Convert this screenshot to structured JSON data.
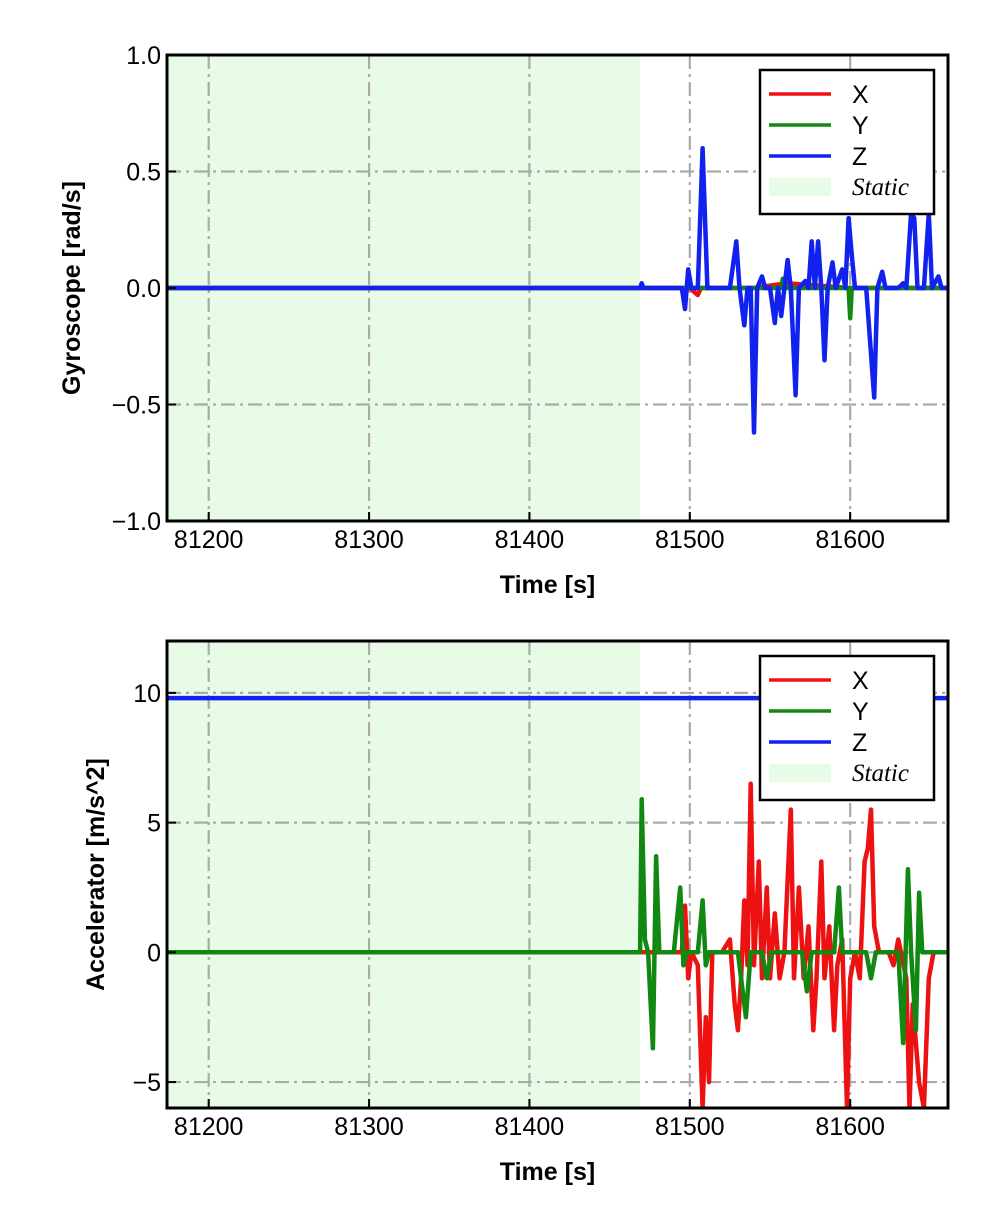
{
  "chart_data": [
    {
      "type": "line",
      "xlabel": "Time [s]",
      "ylabel": "Gyroscope [rad/s]",
      "xlim": [
        81174,
        81661
      ],
      "ylim": [
        -1.0,
        1.0
      ],
      "x_ticks": [
        81200,
        81300,
        81400,
        81500,
        81600
      ],
      "x_tick_labels": [
        "81200",
        "81300",
        "81400",
        "81500",
        "81600"
      ],
      "y_ticks": [
        -1.0,
        -0.5,
        0.0,
        0.5,
        1.0
      ],
      "y_tick_labels": [
        "−1.0",
        "−0.5",
        "0.0",
        "0.5",
        "1.0"
      ],
      "grid": true,
      "legend_position": "top-right",
      "static_region": {
        "label": "Static",
        "x": [
          81174,
          81469
        ],
        "color": "#e8fbe6"
      },
      "series": [
        {
          "name": "X",
          "color": "#ee1111",
          "points": [
            [
              81174,
              0
            ],
            [
              81469,
              0
            ],
            [
              81500,
              0
            ],
            [
              81505,
              -0.03
            ],
            [
              81507,
              0
            ],
            [
              81540,
              0
            ],
            [
              81560,
              0.02
            ],
            [
              81600,
              0
            ],
            [
              81661,
              0
            ]
          ]
        },
        {
          "name": "Y",
          "color": "#118811",
          "points": [
            [
              81174,
              0
            ],
            [
              81469,
              0
            ],
            [
              81540,
              0
            ],
            [
              81557,
              0
            ],
            [
              81558,
              0.04
            ],
            [
              81559,
              0
            ],
            [
              81599,
              0
            ],
            [
              81600,
              -0.13
            ],
            [
              81601,
              0
            ],
            [
              81661,
              0
            ]
          ]
        },
        {
          "name": "Z",
          "color": "#1122ee",
          "points": [
            [
              81174,
              0
            ],
            [
              81469,
              0
            ],
            [
              81470,
              0.02
            ],
            [
              81471,
              0
            ],
            [
              81495,
              0
            ],
            [
              81497,
              -0.09
            ],
            [
              81499,
              0.08
            ],
            [
              81501,
              0
            ],
            [
              81505,
              0
            ],
            [
              81508,
              0.6
            ],
            [
              81511,
              0
            ],
            [
              81525,
              0
            ],
            [
              81529,
              0.2
            ],
            [
              81531,
              0
            ],
            [
              81534,
              -0.16
            ],
            [
              81536,
              0
            ],
            [
              81538,
              0
            ],
            [
              81540,
              -0.62
            ],
            [
              81542,
              0
            ],
            [
              81545,
              0.05
            ],
            [
              81547,
              0
            ],
            [
              81550,
              0
            ],
            [
              81553,
              -0.15
            ],
            [
              81555,
              0
            ],
            [
              81557,
              -0.12
            ],
            [
              81559,
              0
            ],
            [
              81561,
              0.12
            ],
            [
              81563,
              0
            ],
            [
              81566,
              -0.46
            ],
            [
              81568,
              0
            ],
            [
              81572,
              0.03
            ],
            [
              81574,
              0
            ],
            [
              81576,
              0.2
            ],
            [
              81578,
              0
            ],
            [
              81580,
              0.2
            ],
            [
              81582,
              0
            ],
            [
              81584,
              -0.31
            ],
            [
              81586,
              0
            ],
            [
              81589,
              0.11
            ],
            [
              81591,
              0
            ],
            [
              81595,
              0.08
            ],
            [
              81597,
              0
            ],
            [
              81599,
              0.3
            ],
            [
              81601,
              0.14
            ],
            [
              81603,
              0
            ],
            [
              81610,
              0
            ],
            [
              81615,
              -0.47
            ],
            [
              81617,
              0
            ],
            [
              81620,
              0.07
            ],
            [
              81622,
              0
            ],
            [
              81630,
              0
            ],
            [
              81633,
              0.02
            ],
            [
              81635,
              0
            ],
            [
              81638,
              0.32
            ],
            [
              81640,
              0.3
            ],
            [
              81642,
              0
            ],
            [
              81646,
              0
            ],
            [
              81649,
              0.32
            ],
            [
              81651,
              0
            ],
            [
              81655,
              0.05
            ],
            [
              81657,
              0
            ],
            [
              81661,
              0
            ]
          ]
        }
      ]
    },
    {
      "type": "line",
      "xlabel": "Time [s]",
      "ylabel": "Accelerator [m/s^2]",
      "xlim": [
        81174,
        81661
      ],
      "ylim": [
        -6.0,
        12.0
      ],
      "x_ticks": [
        81200,
        81300,
        81400,
        81500,
        81600
      ],
      "x_tick_labels": [
        "81200",
        "81300",
        "81400",
        "81500",
        "81600"
      ],
      "y_ticks": [
        -5,
        0,
        5,
        10
      ],
      "y_tick_labels": [
        "−5",
        "0",
        "5",
        "10"
      ],
      "grid": true,
      "legend_position": "top-right",
      "static_region": {
        "label": "Static",
        "x": [
          81174,
          81469
        ],
        "color": "#e8fbe6"
      },
      "series": [
        {
          "name": "X",
          "color": "#ee1111",
          "points": [
            [
              81174,
              0
            ],
            [
              81469,
              0
            ],
            [
              81495,
              0
            ],
            [
              81497,
              1.8
            ],
            [
              81499,
              -1
            ],
            [
              81501,
              0
            ],
            [
              81505,
              -0.5
            ],
            [
              81508,
              -6
            ],
            [
              81510,
              -2.5
            ],
            [
              81512,
              -5
            ],
            [
              81514,
              0
            ],
            [
              81520,
              0
            ],
            [
              81525,
              0.5
            ],
            [
              81528,
              -2
            ],
            [
              81530,
              -3
            ],
            [
              81532,
              -1
            ],
            [
              81534,
              2
            ],
            [
              81536,
              -0.5
            ],
            [
              81538,
              6.5
            ],
            [
              81540,
              -0.5
            ],
            [
              81543,
              3.5
            ],
            [
              81545,
              -1
            ],
            [
              81548,
              2.5
            ],
            [
              81550,
              -1
            ],
            [
              81553,
              1.5
            ],
            [
              81556,
              -1
            ],
            [
              81559,
              0
            ],
            [
              81563,
              5.5
            ],
            [
              81565,
              -1
            ],
            [
              81568,
              2.5
            ],
            [
              81571,
              -1
            ],
            [
              81574,
              1
            ],
            [
              81577,
              -3
            ],
            [
              81579,
              -1
            ],
            [
              81582,
              3.5
            ],
            [
              81584,
              -1
            ],
            [
              81587,
              1
            ],
            [
              81590,
              -3
            ],
            [
              81592,
              -0.5
            ],
            [
              81595,
              0.5
            ],
            [
              81598,
              -6
            ],
            [
              81600,
              -1
            ],
            [
              81603,
              0
            ],
            [
              81606,
              -1
            ],
            [
              81609,
              3.5
            ],
            [
              81611,
              4
            ],
            [
              81613,
              5.5
            ],
            [
              81615,
              1
            ],
            [
              81618,
              0
            ],
            [
              81624,
              0
            ],
            [
              81627,
              -0.5
            ],
            [
              81630,
              0.5
            ],
            [
              81635,
              -1
            ],
            [
              81637,
              -6
            ],
            [
              81639,
              -2
            ],
            [
              81643,
              -5
            ],
            [
              81646,
              -6
            ],
            [
              81649,
              -1
            ],
            [
              81652,
              0
            ],
            [
              81661,
              0
            ]
          ]
        },
        {
          "name": "Y",
          "color": "#118811",
          "points": [
            [
              81174,
              0
            ],
            [
              81469,
              0
            ],
            [
              81470,
              5.9
            ],
            [
              81472,
              0.5
            ],
            [
              81474,
              0
            ],
            [
              81477,
              -3.7
            ],
            [
              81479,
              3.7
            ],
            [
              81481,
              0
            ],
            [
              81490,
              0
            ],
            [
              81494,
              2.5
            ],
            [
              81496,
              -0.5
            ],
            [
              81498,
              0
            ],
            [
              81505,
              0
            ],
            [
              81508,
              2
            ],
            [
              81510,
              -0.5
            ],
            [
              81512,
              0
            ],
            [
              81530,
              0
            ],
            [
              81535,
              -2.5
            ],
            [
              81538,
              0
            ],
            [
              81545,
              0
            ],
            [
              81548,
              -1
            ],
            [
              81551,
              0
            ],
            [
              81570,
              0
            ],
            [
              81573,
              -1.5
            ],
            [
              81576,
              0
            ],
            [
              81590,
              0
            ],
            [
              81593,
              2.5
            ],
            [
              81595,
              0
            ],
            [
              81610,
              0
            ],
            [
              81613,
              -1
            ],
            [
              81616,
              0
            ],
            [
              81630,
              0
            ],
            [
              81633,
              -3.5
            ],
            [
              81636,
              3.2
            ],
            [
              81638,
              0
            ],
            [
              81641,
              -3
            ],
            [
              81643,
              2.3
            ],
            [
              81645,
              0
            ],
            [
              81661,
              0
            ]
          ]
        },
        {
          "name": "Z",
          "color": "#1122ee",
          "points": [
            [
              81174,
              9.8
            ],
            [
              81661,
              9.8
            ]
          ]
        }
      ]
    }
  ]
}
